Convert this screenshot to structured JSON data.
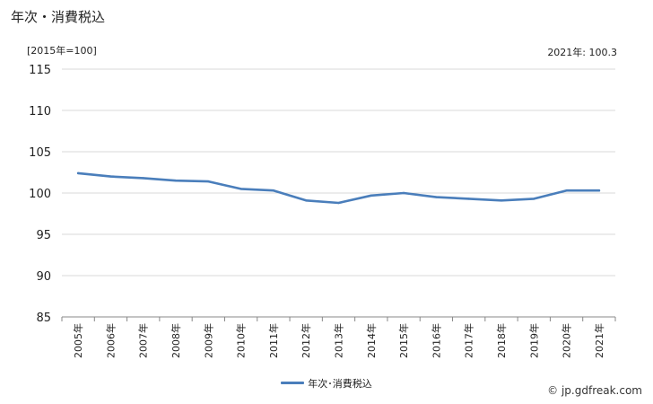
{
  "title": "年次・消費税込",
  "unit_label": "[2015年=100]",
  "latest_label": "2021年: 100.3",
  "credit": "© jp.gdfreak.com",
  "colors": {
    "line": "#4a7ebb",
    "grid": "#d9d9d9",
    "axis": "#888888",
    "text": "#222222"
  },
  "chart_data": {
    "type": "line",
    "title": "年次・消費税込",
    "ylabel": "[2015年=100]",
    "xlabel": "",
    "grid": true,
    "legend_position": "bottom",
    "ylim": [
      85,
      115
    ],
    "yticks": [
      85,
      90,
      95,
      100,
      105,
      110,
      115
    ],
    "categories": [
      "2005年",
      "2006年",
      "2007年",
      "2008年",
      "2009年",
      "2010年",
      "2011年",
      "2012年",
      "2013年",
      "2014年",
      "2015年",
      "2016年",
      "2017年",
      "2018年",
      "2019年",
      "2020年",
      "2021年"
    ],
    "series": [
      {
        "name": "年次･消費税込",
        "values": [
          102.4,
          102.0,
          101.8,
          101.5,
          101.4,
          100.5,
          100.3,
          99.1,
          98.8,
          99.7,
          100.0,
          99.5,
          99.3,
          99.1,
          99.3,
          100.3,
          100.3
        ]
      }
    ]
  }
}
